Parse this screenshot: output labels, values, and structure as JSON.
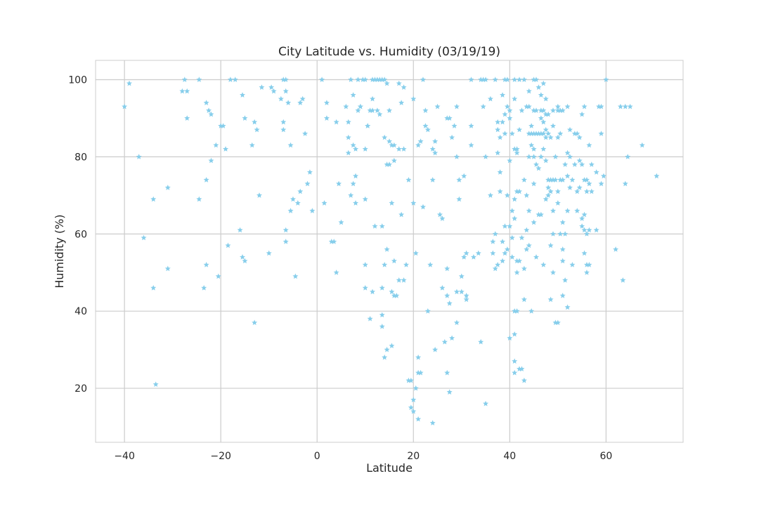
{
  "chart_data": {
    "type": "scatter",
    "title": "City Latitude vs. Humidity (03/19/19)",
    "xlabel": "Latitude",
    "ylabel": "Humidity (%)",
    "xlim": [
      -46,
      76
    ],
    "ylim": [
      6,
      105
    ],
    "xticks": [
      -40,
      -20,
      0,
      20,
      40,
      60
    ],
    "yticks": [
      20,
      40,
      60,
      80,
      100
    ],
    "xtick_labels": [
      "−40",
      "−20",
      "0",
      "20",
      "40",
      "60"
    ],
    "ytick_labels": [
      "20",
      "40",
      "60",
      "80",
      "100"
    ],
    "grid": true,
    "marker": "star",
    "color": "#87ceeb",
    "grid_color": "#cccccc",
    "points": [
      [
        -40,
        93
      ],
      [
        -39,
        99
      ],
      [
        -37,
        80
      ],
      [
        -36,
        59
      ],
      [
        -34,
        69
      ],
      [
        -34,
        46
      ],
      [
        -33.5,
        21
      ],
      [
        -31,
        72
      ],
      [
        -31,
        51
      ],
      [
        -28,
        97
      ],
      [
        -27.5,
        100
      ],
      [
        -27,
        97
      ],
      [
        -27,
        90
      ],
      [
        -24.5,
        100
      ],
      [
        -24.5,
        69
      ],
      [
        -23.5,
        46
      ],
      [
        -23,
        94
      ],
      [
        -23,
        74
      ],
      [
        -23,
        52
      ],
      [
        -22.5,
        92
      ],
      [
        -22,
        91
      ],
      [
        -22,
        79
      ],
      [
        -21,
        83
      ],
      [
        -20.5,
        49
      ],
      [
        -20,
        88
      ],
      [
        -19.5,
        88
      ],
      [
        -19,
        82
      ],
      [
        -18.5,
        57
      ],
      [
        -18,
        100
      ],
      [
        -17,
        100
      ],
      [
        -16,
        61
      ],
      [
        -15.5,
        96
      ],
      [
        -15.5,
        54
      ],
      [
        -15,
        90
      ],
      [
        -15,
        53
      ],
      [
        -13.5,
        83
      ],
      [
        -13,
        89
      ],
      [
        -13,
        37
      ],
      [
        -12.5,
        87
      ],
      [
        -12,
        70
      ],
      [
        -11.5,
        98
      ],
      [
        -10,
        55
      ],
      [
        -9.5,
        98
      ],
      [
        -9,
        97
      ],
      [
        -7.5,
        95
      ],
      [
        -7,
        100
      ],
      [
        -7,
        89
      ],
      [
        -7,
        87
      ],
      [
        -6.5,
        100
      ],
      [
        -6.5,
        97
      ],
      [
        -6.5,
        61
      ],
      [
        -6.5,
        58
      ],
      [
        -6,
        94
      ],
      [
        -5.5,
        83
      ],
      [
        -5.5,
        66
      ],
      [
        -5,
        69
      ],
      [
        -4.5,
        49
      ],
      [
        -4,
        68
      ],
      [
        -3.5,
        94
      ],
      [
        -3.5,
        71
      ],
      [
        -3,
        95
      ],
      [
        -2.5,
        86
      ],
      [
        -2,
        73
      ],
      [
        -1.5,
        76
      ],
      [
        -1,
        66
      ],
      [
        1,
        100
      ],
      [
        1.5,
        68
      ],
      [
        2,
        94
      ],
      [
        2,
        90
      ],
      [
        3,
        58
      ],
      [
        3.5,
        58
      ],
      [
        4,
        89
      ],
      [
        4,
        50
      ],
      [
        4.5,
        73
      ],
      [
        5,
        63
      ],
      [
        6,
        93
      ],
      [
        6.5,
        89
      ],
      [
        6.5,
        85
      ],
      [
        6.5,
        81
      ],
      [
        7,
        70
      ],
      [
        7,
        100
      ],
      [
        7.5,
        96
      ],
      [
        7.5,
        83
      ],
      [
        7.5,
        73
      ],
      [
        8,
        82
      ],
      [
        8,
        75
      ],
      [
        8,
        68
      ],
      [
        8.5,
        100
      ],
      [
        8.5,
        92
      ],
      [
        9,
        93
      ],
      [
        9,
        93
      ],
      [
        9.5,
        100
      ],
      [
        10,
        100
      ],
      [
        10,
        82
      ],
      [
        10,
        69
      ],
      [
        10,
        52
      ],
      [
        10,
        46
      ],
      [
        10.5,
        88
      ],
      [
        10.5,
        88
      ],
      [
        11,
        92
      ],
      [
        11,
        38
      ],
      [
        11.5,
        100
      ],
      [
        11.5,
        95
      ],
      [
        11.5,
        92
      ],
      [
        11.5,
        45
      ],
      [
        12,
        100
      ],
      [
        12,
        62
      ],
      [
        12.5,
        100
      ],
      [
        12.5,
        92
      ],
      [
        13,
        100
      ],
      [
        13,
        91
      ],
      [
        13.5,
        100
      ],
      [
        13.5,
        62
      ],
      [
        13.5,
        46
      ],
      [
        13.5,
        39
      ],
      [
        13.5,
        36
      ],
      [
        14,
        100
      ],
      [
        14,
        85
      ],
      [
        14,
        52
      ],
      [
        14,
        28
      ],
      [
        14.5,
        99
      ],
      [
        14.5,
        78
      ],
      [
        14.5,
        56
      ],
      [
        14.5,
        30
      ],
      [
        15,
        78
      ],
      [
        15,
        92
      ],
      [
        15,
        84
      ],
      [
        15.5,
        83
      ],
      [
        15.5,
        68
      ],
      [
        15.5,
        45
      ],
      [
        15.5,
        31
      ],
      [
        16,
        83
      ],
      [
        16,
        79
      ],
      [
        16,
        53
      ],
      [
        16,
        44
      ],
      [
        16.5,
        44
      ],
      [
        17,
        99
      ],
      [
        17,
        82
      ],
      [
        17,
        48
      ],
      [
        17.5,
        94
      ],
      [
        17.5,
        65
      ],
      [
        18,
        98
      ],
      [
        18,
        82
      ],
      [
        18,
        48
      ],
      [
        18.5,
        52
      ],
      [
        19,
        74
      ],
      [
        19,
        22
      ],
      [
        19.5,
        22
      ],
      [
        19.5,
        15
      ],
      [
        20,
        68
      ],
      [
        20,
        95
      ],
      [
        20,
        14
      ],
      [
        20,
        17
      ],
      [
        20.5,
        55
      ],
      [
        20.5,
        20
      ],
      [
        21,
        83
      ],
      [
        21,
        28
      ],
      [
        21,
        24
      ],
      [
        21,
        12
      ],
      [
        21.5,
        84
      ],
      [
        21.5,
        24
      ],
      [
        22,
        100
      ],
      [
        22,
        67
      ],
      [
        22.5,
        88
      ],
      [
        22.5,
        92
      ],
      [
        23,
        87
      ],
      [
        23,
        40
      ],
      [
        23.5,
        52
      ],
      [
        24,
        82
      ],
      [
        24,
        74
      ],
      [
        24,
        11
      ],
      [
        24.5,
        84
      ],
      [
        24.5,
        81
      ],
      [
        24.5,
        30
      ],
      [
        25,
        93
      ],
      [
        25.5,
        65
      ],
      [
        26,
        64
      ],
      [
        26,
        46
      ],
      [
        26.5,
        32
      ],
      [
        27,
        90
      ],
      [
        27,
        51
      ],
      [
        27,
        44
      ],
      [
        27,
        24
      ],
      [
        27.5,
        90
      ],
      [
        27.5,
        42
      ],
      [
        27.5,
        19
      ],
      [
        28,
        85
      ],
      [
        28,
        33
      ],
      [
        28.5,
        88
      ],
      [
        29,
        93
      ],
      [
        29,
        80
      ],
      [
        29,
        45
      ],
      [
        29,
        37
      ],
      [
        29.5,
        74
      ],
      [
        29.5,
        69
      ],
      [
        30,
        49
      ],
      [
        30,
        45
      ],
      [
        30.5,
        75
      ],
      [
        30.5,
        54
      ],
      [
        31,
        55
      ],
      [
        31,
        44
      ],
      [
        31,
        43
      ],
      [
        32,
        100
      ],
      [
        32,
        88
      ],
      [
        32,
        83
      ],
      [
        32.5,
        54
      ],
      [
        33.5,
        55
      ],
      [
        34,
        100
      ],
      [
        34,
        32
      ],
      [
        34.5,
        100
      ],
      [
        34.5,
        93
      ],
      [
        35,
        100
      ],
      [
        35,
        80
      ],
      [
        35,
        16
      ],
      [
        36,
        95
      ],
      [
        36,
        70
      ],
      [
        36.5,
        58
      ],
      [
        36.5,
        55
      ],
      [
        37,
        100
      ],
      [
        37,
        60
      ],
      [
        37,
        51
      ],
      [
        37.5,
        89
      ],
      [
        37.5,
        87
      ],
      [
        37.5,
        81
      ],
      [
        37.5,
        52
      ],
      [
        38,
        85
      ],
      [
        38,
        76
      ],
      [
        38,
        71
      ],
      [
        38.5,
        96
      ],
      [
        38.5,
        89
      ],
      [
        38.5,
        58
      ],
      [
        38.5,
        53
      ],
      [
        39,
        100
      ],
      [
        39,
        91
      ],
      [
        39,
        86
      ],
      [
        39,
        62
      ],
      [
        39,
        55
      ],
      [
        39.5,
        100
      ],
      [
        39.5,
        93
      ],
      [
        39.5,
        70
      ],
      [
        39.5,
        56
      ],
      [
        40,
        92
      ],
      [
        40,
        90
      ],
      [
        40,
        79
      ],
      [
        40,
        62
      ],
      [
        40,
        33
      ],
      [
        40.5,
        86
      ],
      [
        40.5,
        66
      ],
      [
        40.5,
        59
      ],
      [
        40.5,
        54
      ],
      [
        41,
        100
      ],
      [
        41,
        95
      ],
      [
        41,
        82
      ],
      [
        41,
        69
      ],
      [
        41,
        64
      ],
      [
        41,
        40
      ],
      [
        41,
        34
      ],
      [
        41,
        27
      ],
      [
        41,
        24
      ],
      [
        41.5,
        82
      ],
      [
        41.5,
        81
      ],
      [
        41.5,
        71
      ],
      [
        41.5,
        53
      ],
      [
        41.5,
        50
      ],
      [
        41.5,
        40
      ],
      [
        42,
        100
      ],
      [
        42,
        87
      ],
      [
        42,
        71
      ],
      [
        42,
        53
      ],
      [
        42,
        25
      ],
      [
        42.5,
        92
      ],
      [
        42.5,
        59
      ],
      [
        42.5,
        25
      ],
      [
        43,
        100
      ],
      [
        43,
        74
      ],
      [
        43,
        51
      ],
      [
        43,
        43
      ],
      [
        43,
        22
      ],
      [
        43.5,
        93
      ],
      [
        43.5,
        70
      ],
      [
        43.5,
        61
      ],
      [
        43.5,
        56
      ],
      [
        44,
        97
      ],
      [
        44,
        93
      ],
      [
        44,
        86
      ],
      [
        44,
        80
      ],
      [
        44,
        66
      ],
      [
        44,
        57
      ],
      [
        44.5,
        88
      ],
      [
        44.5,
        86
      ],
      [
        44.5,
        83
      ],
      [
        44.5,
        40
      ],
      [
        45,
        100
      ],
      [
        45,
        92
      ],
      [
        45,
        86
      ],
      [
        45,
        82
      ],
      [
        45,
        80
      ],
      [
        45,
        73
      ],
      [
        45,
        63
      ],
      [
        45.5,
        100
      ],
      [
        45.5,
        92
      ],
      [
        45.5,
        86
      ],
      [
        45.5,
        78
      ],
      [
        45.5,
        54
      ],
      [
        46,
        98
      ],
      [
        46,
        86
      ],
      [
        46,
        77
      ],
      [
        46,
        65
      ],
      [
        46.5,
        96
      ],
      [
        46.5,
        92
      ],
      [
        46.5,
        90
      ],
      [
        46.5,
        86
      ],
      [
        46.5,
        80
      ],
      [
        46.5,
        65
      ],
      [
        47,
        99
      ],
      [
        47,
        92
      ],
      [
        47,
        89
      ],
      [
        47,
        86
      ],
      [
        47,
        82
      ],
      [
        47,
        52
      ],
      [
        47.5,
        95
      ],
      [
        47.5,
        91
      ],
      [
        47.5,
        87
      ],
      [
        47.5,
        85
      ],
      [
        47.5,
        79
      ],
      [
        47.5,
        69
      ],
      [
        48,
        91
      ],
      [
        48,
        86
      ],
      [
        48,
        72
      ],
      [
        48,
        74
      ],
      [
        48,
        70
      ],
      [
        48.5,
        85
      ],
      [
        48.5,
        74
      ],
      [
        48.5,
        71
      ],
      [
        48.5,
        57
      ],
      [
        48.5,
        43
      ],
      [
        49,
        92
      ],
      [
        49,
        88
      ],
      [
        49,
        74
      ],
      [
        49,
        66
      ],
      [
        49,
        60
      ],
      [
        49,
        50
      ],
      [
        49.5,
        80
      ],
      [
        49.5,
        74
      ],
      [
        49.5,
        37
      ],
      [
        50,
        93
      ],
      [
        50,
        92
      ],
      [
        50,
        85
      ],
      [
        50,
        71
      ],
      [
        50,
        68
      ],
      [
        50,
        37
      ],
      [
        50.5,
        92
      ],
      [
        50.5,
        86
      ],
      [
        50.5,
        74
      ],
      [
        50.5,
        60
      ],
      [
        51,
        92
      ],
      [
        51,
        74
      ],
      [
        51,
        63
      ],
      [
        51,
        56
      ],
      [
        51,
        53
      ],
      [
        51,
        44
      ],
      [
        51.5,
        78
      ],
      [
        51.5,
        60
      ],
      [
        51.5,
        48
      ],
      [
        52,
        93
      ],
      [
        52,
        81
      ],
      [
        52,
        75
      ],
      [
        52,
        66
      ],
      [
        52,
        41
      ],
      [
        52.5,
        87
      ],
      [
        52.5,
        80
      ],
      [
        52.5,
        72
      ],
      [
        53,
        74
      ],
      [
        53,
        52
      ],
      [
        53.5,
        86
      ],
      [
        53.5,
        78
      ],
      [
        54,
        86
      ],
      [
        54,
        66
      ],
      [
        54,
        71
      ],
      [
        54.5,
        85
      ],
      [
        54.5,
        79
      ],
      [
        54.5,
        72
      ],
      [
        55,
        91
      ],
      [
        55,
        78
      ],
      [
        55,
        64
      ],
      [
        55,
        62
      ],
      [
        55.5,
        93
      ],
      [
        55.5,
        74
      ],
      [
        55.5,
        65
      ],
      [
        55.5,
        61
      ],
      [
        55.5,
        55
      ],
      [
        56,
        74
      ],
      [
        56,
        71
      ],
      [
        56,
        60
      ],
      [
        56,
        52
      ],
      [
        56,
        50
      ],
      [
        56.5,
        83
      ],
      [
        56.5,
        73
      ],
      [
        56.5,
        61
      ],
      [
        56.5,
        52
      ],
      [
        57,
        78
      ],
      [
        57,
        71
      ],
      [
        58,
        76
      ],
      [
        58,
        61
      ],
      [
        58.5,
        93
      ],
      [
        59,
        93
      ],
      [
        59,
        86
      ],
      [
        59,
        73
      ],
      [
        59.5,
        75
      ],
      [
        60,
        100
      ],
      [
        62,
        56
      ],
      [
        63,
        93
      ],
      [
        63.5,
        48
      ],
      [
        64,
        93
      ],
      [
        64,
        73
      ],
      [
        64.5,
        80
      ],
      [
        65,
        93
      ],
      [
        67.5,
        83
      ],
      [
        70.5,
        75
      ]
    ]
  }
}
